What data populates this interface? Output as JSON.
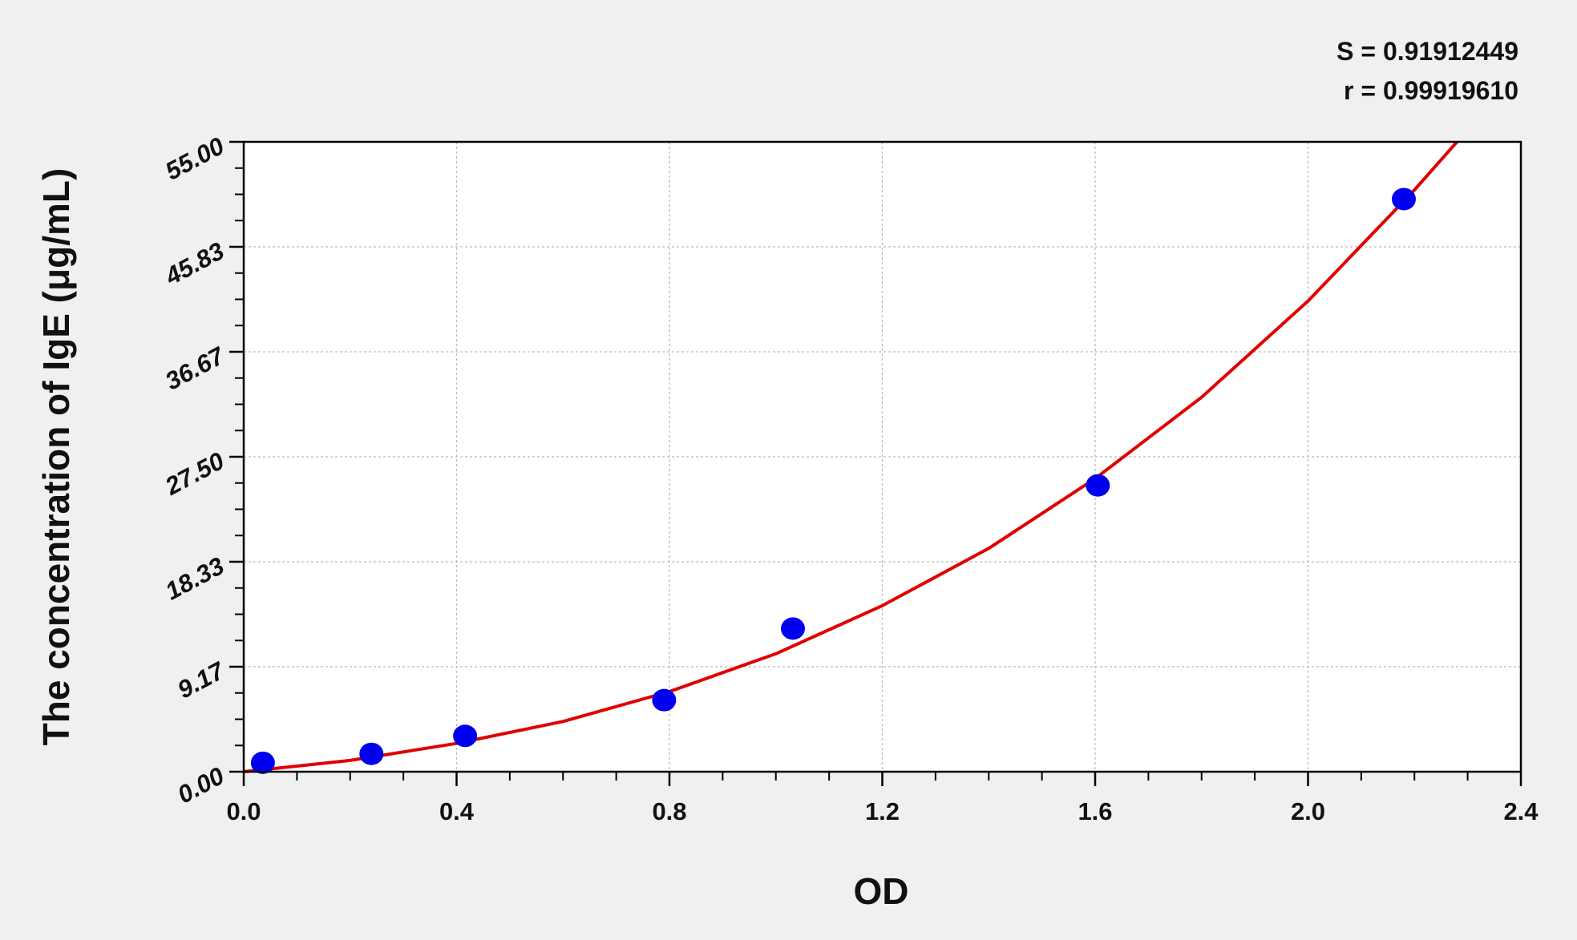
{
  "chart_data": {
    "type": "scatter",
    "xlabel": "OD",
    "ylabel": "The concentration of IgE (μg/mL)",
    "xlim": [
      0,
      2.4
    ],
    "ylim": [
      0,
      55
    ],
    "xticks": [
      "0.0",
      "0.4",
      "0.8",
      "1.2",
      "1.6",
      "2.0",
      "2.4"
    ],
    "yticks": [
      "0.00",
      "9.17",
      "18.33",
      "27.50",
      "36.67",
      "45.83",
      "55.00"
    ],
    "grid": true,
    "annotations": [
      "S = 0.91912449",
      "r = 0.99919610"
    ],
    "points": [
      {
        "x": 0.036,
        "y": 0.78
      },
      {
        "x": 0.24,
        "y": 1.56
      },
      {
        "x": 0.416,
        "y": 3.13
      },
      {
        "x": 0.79,
        "y": 6.25
      },
      {
        "x": 1.032,
        "y": 12.5
      },
      {
        "x": 1.605,
        "y": 25
      },
      {
        "x": 2.18,
        "y": 50
      }
    ],
    "fit_curve": {
      "x": [
        0,
        0.2,
        0.4,
        0.6,
        0.8,
        1.0,
        1.2,
        1.4,
        1.6,
        1.8,
        2.0,
        2.2,
        2.28
      ],
      "y": [
        0,
        0.99,
        2.47,
        4.39,
        7.0,
        10.3,
        14.5,
        19.5,
        25.6,
        32.7,
        41.1,
        50.8,
        55.0
      ]
    },
    "colors": {
      "points": "#0000ee",
      "curve": "#e00000",
      "background": "#f0f0f0",
      "plot": "#ffffff"
    }
  }
}
